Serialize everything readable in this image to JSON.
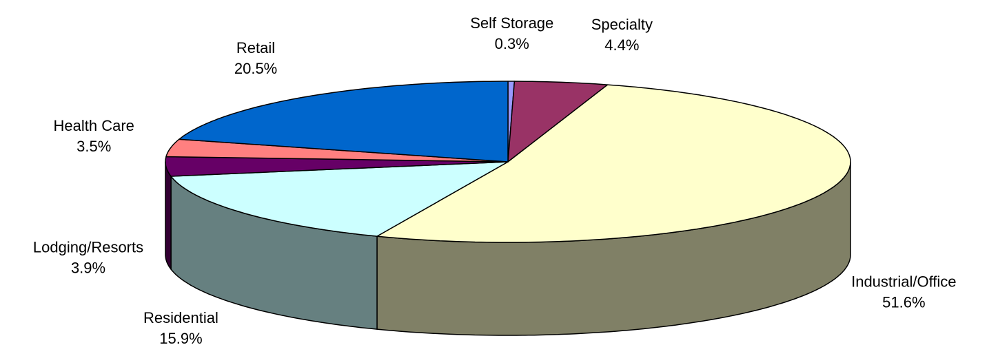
{
  "chart_data": {
    "type": "pie3d",
    "categories": [
      "Self Storage",
      "Specialty",
      "Industrial/Office",
      "Residential",
      "Lodging/Resorts",
      "Health Care",
      "Retail"
    ],
    "values": [
      0.3,
      4.4,
      51.6,
      15.9,
      3.9,
      3.5,
      20.5
    ],
    "value_labels": [
      "0.3%",
      "4.4%",
      "51.6%",
      "15.9%",
      "3.9%",
      "3.5%",
      "20.5%"
    ],
    "colors": [
      "#9999ff",
      "#993366",
      "#ffffcc",
      "#ccffff",
      "#660066",
      "#ff8080",
      "#0066cc"
    ]
  }
}
